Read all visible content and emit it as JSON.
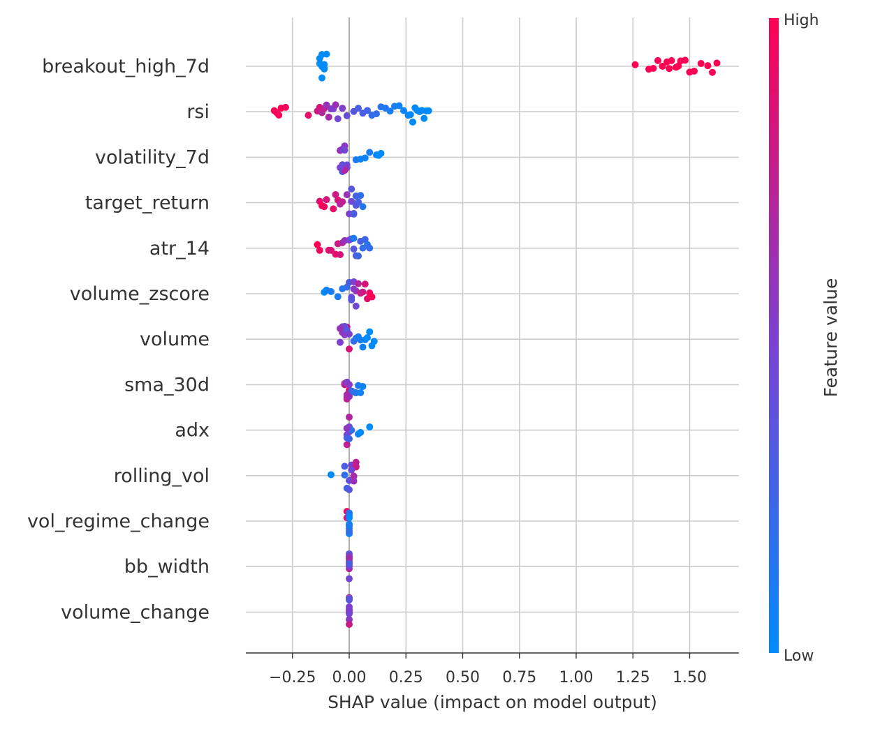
{
  "chart_data": {
    "type": "scatter",
    "title": "",
    "xlabel": "SHAP value (impact on model output)",
    "ylabel": "",
    "xlim": [
      -0.45,
      1.73
    ],
    "xticks": [
      -0.25,
      0.0,
      0.25,
      0.5,
      0.75,
      1.0,
      1.25,
      1.5
    ],
    "xtick_labels": [
      "−0.25",
      "0.00",
      "0.25",
      "0.50",
      "0.75",
      "1.00",
      "1.25",
      "1.50"
    ],
    "grid": true,
    "colorbar": {
      "title": "Feature value",
      "high_label": "High",
      "low_label": "Low",
      "high_color": "#ff0052",
      "low_color": "#008bfb"
    },
    "features": [
      {
        "name": "breakout_high_7d",
        "points": [
          [
            -0.12,
            0.0
          ],
          [
            -0.11,
            0.0
          ],
          [
            -0.12,
            0.0
          ],
          [
            -0.13,
            0.0
          ],
          [
            -0.11,
            0.0
          ],
          [
            -0.12,
            0.0
          ],
          [
            -0.1,
            0.0
          ],
          [
            -0.12,
            0.0
          ],
          [
            -0.11,
            0.0
          ],
          [
            -0.13,
            0.0
          ],
          [
            1.26,
            1.0
          ],
          [
            1.32,
            1.0
          ],
          [
            1.34,
            1.0
          ],
          [
            1.36,
            1.0
          ],
          [
            1.38,
            1.0
          ],
          [
            1.4,
            1.0
          ],
          [
            1.41,
            1.0
          ],
          [
            1.42,
            1.0
          ],
          [
            1.44,
            1.0
          ],
          [
            1.45,
            1.0
          ],
          [
            1.46,
            1.0
          ],
          [
            1.48,
            1.0
          ],
          [
            1.5,
            1.0
          ],
          [
            1.52,
            1.0
          ],
          [
            1.55,
            1.0
          ],
          [
            1.58,
            1.0
          ],
          [
            1.6,
            1.0
          ],
          [
            1.62,
            1.0
          ]
        ]
      },
      {
        "name": "rsi",
        "points": [
          [
            -0.33,
            1.0
          ],
          [
            -0.32,
            0.95
          ],
          [
            -0.31,
            0.98
          ],
          [
            -0.3,
            1.0
          ],
          [
            -0.28,
            0.95
          ],
          [
            -0.18,
            0.9
          ],
          [
            -0.14,
            0.8
          ],
          [
            -0.13,
            0.85
          ],
          [
            -0.12,
            0.7
          ],
          [
            -0.11,
            0.75
          ],
          [
            -0.1,
            0.6
          ],
          [
            -0.09,
            0.65
          ],
          [
            -0.08,
            0.55
          ],
          [
            -0.07,
            0.5
          ],
          [
            -0.06,
            0.6
          ],
          [
            -0.05,
            0.45
          ],
          [
            -0.03,
            0.5
          ],
          [
            -0.01,
            0.4
          ],
          [
            0.02,
            0.35
          ],
          [
            0.04,
            0.3
          ],
          [
            0.06,
            0.3
          ],
          [
            0.08,
            0.25
          ],
          [
            0.1,
            0.2
          ],
          [
            0.12,
            0.2
          ],
          [
            0.14,
            0.15
          ],
          [
            0.16,
            0.12
          ],
          [
            0.18,
            0.1
          ],
          [
            0.2,
            0.1
          ],
          [
            0.22,
            0.05
          ],
          [
            0.24,
            0.05
          ],
          [
            0.26,
            0.05
          ],
          [
            0.27,
            0.02
          ],
          [
            0.28,
            0.0
          ],
          [
            0.29,
            0.02
          ],
          [
            0.3,
            0.0
          ],
          [
            0.31,
            0.0
          ],
          [
            0.32,
            0.0
          ],
          [
            0.33,
            0.0
          ],
          [
            0.34,
            0.0
          ],
          [
            0.35,
            0.0
          ]
        ]
      },
      {
        "name": "volatility_7d",
        "points": [
          [
            -0.04,
            0.6
          ],
          [
            -0.03,
            0.5
          ],
          [
            -0.03,
            0.4
          ],
          [
            -0.02,
            0.55
          ],
          [
            -0.02,
            0.45
          ],
          [
            -0.01,
            0.4
          ],
          [
            -0.01,
            0.5
          ],
          [
            -0.03,
            0.35
          ],
          [
            -0.02,
            0.7
          ],
          [
            -0.04,
            0.45
          ],
          [
            0.03,
            0.1
          ],
          [
            0.05,
            0.05
          ],
          [
            0.07,
            0.05
          ],
          [
            0.09,
            0.1
          ],
          [
            0.12,
            0.05
          ],
          [
            0.13,
            0.0
          ],
          [
            0.14,
            0.0
          ]
        ]
      },
      {
        "name": "target_return",
        "points": [
          [
            -0.13,
            0.9
          ],
          [
            -0.12,
            1.0
          ],
          [
            -0.11,
            0.95
          ],
          [
            -0.1,
            0.85
          ],
          [
            -0.07,
            0.9
          ],
          [
            -0.06,
            0.8
          ],
          [
            -0.05,
            0.85
          ],
          [
            -0.04,
            0.7
          ],
          [
            -0.03,
            0.75
          ],
          [
            -0.01,
            0.6
          ],
          [
            0.0,
            0.5
          ],
          [
            0.01,
            0.45
          ],
          [
            0.02,
            0.4
          ],
          [
            0.03,
            0.35
          ],
          [
            0.04,
            0.3
          ],
          [
            0.05,
            0.2
          ],
          [
            0.06,
            0.15
          ],
          [
            0.02,
            0.3
          ],
          [
            0.03,
            0.25
          ],
          [
            0.01,
            0.35
          ]
        ]
      },
      {
        "name": "atr_14",
        "points": [
          [
            -0.14,
            1.0
          ],
          [
            -0.13,
            0.95
          ],
          [
            -0.09,
            0.9
          ],
          [
            -0.08,
            0.85
          ],
          [
            -0.06,
            0.9
          ],
          [
            -0.05,
            0.8
          ],
          [
            -0.04,
            0.85
          ],
          [
            -0.03,
            0.7
          ],
          [
            -0.02,
            0.6
          ],
          [
            0.0,
            0.5
          ],
          [
            0.01,
            0.4
          ],
          [
            0.02,
            0.35
          ],
          [
            0.03,
            0.3
          ],
          [
            0.04,
            0.25
          ],
          [
            0.05,
            0.3
          ],
          [
            0.06,
            0.2
          ],
          [
            0.07,
            0.25
          ],
          [
            0.08,
            0.15
          ],
          [
            0.09,
            0.2
          ],
          [
            0.02,
            0.1
          ]
        ]
      },
      {
        "name": "volume_zscore",
        "points": [
          [
            -0.11,
            0.0
          ],
          [
            -0.1,
            0.05
          ],
          [
            -0.08,
            0.1
          ],
          [
            -0.05,
            0.1
          ],
          [
            -0.03,
            0.15
          ],
          [
            -0.01,
            0.2
          ],
          [
            0.0,
            0.3
          ],
          [
            0.01,
            0.4
          ],
          [
            0.02,
            0.5
          ],
          [
            0.03,
            0.6
          ],
          [
            0.04,
            0.7
          ],
          [
            0.05,
            0.75
          ],
          [
            0.06,
            0.8
          ],
          [
            0.07,
            0.85
          ],
          [
            0.08,
            0.9
          ],
          [
            0.09,
            0.95
          ],
          [
            0.1,
            1.0
          ],
          [
            0.02,
            0.55
          ],
          [
            0.03,
            0.45
          ],
          [
            0.01,
            0.35
          ]
        ]
      },
      {
        "name": "volume",
        "points": [
          [
            -0.04,
            0.5
          ],
          [
            -0.03,
            0.6
          ],
          [
            -0.02,
            0.55
          ],
          [
            -0.01,
            0.8
          ],
          [
            0.0,
            0.85
          ],
          [
            -0.02,
            0.4
          ],
          [
            -0.03,
            0.45
          ],
          [
            -0.01,
            0.35
          ],
          [
            0.0,
            0.5
          ],
          [
            -0.04,
            0.6
          ],
          [
            0.02,
            0.2
          ],
          [
            0.03,
            0.15
          ],
          [
            0.04,
            0.1
          ],
          [
            0.05,
            0.1
          ],
          [
            0.06,
            0.05
          ],
          [
            0.07,
            0.05
          ],
          [
            0.08,
            0.0
          ],
          [
            0.09,
            0.0
          ],
          [
            0.1,
            0.0
          ],
          [
            0.11,
            0.0
          ]
        ]
      },
      {
        "name": "sma_30d",
        "points": [
          [
            -0.02,
            0.8
          ],
          [
            -0.01,
            0.85
          ],
          [
            0.0,
            0.9
          ],
          [
            -0.02,
            0.7
          ],
          [
            -0.01,
            0.75
          ],
          [
            0.0,
            0.6
          ],
          [
            -0.01,
            0.5
          ],
          [
            0.0,
            0.55
          ],
          [
            0.01,
            0.3
          ],
          [
            0.02,
            0.2
          ],
          [
            0.03,
            0.15
          ],
          [
            0.04,
            0.1
          ],
          [
            0.05,
            0.05
          ],
          [
            0.06,
            0.05
          ],
          [
            -0.01,
            0.65
          ]
        ]
      },
      {
        "name": "adx",
        "points": [
          [
            -0.01,
            0.8
          ],
          [
            0.0,
            0.7
          ],
          [
            -0.01,
            0.75
          ],
          [
            0.0,
            0.6
          ],
          [
            -0.01,
            0.5
          ],
          [
            0.0,
            0.45
          ],
          [
            -0.01,
            0.3
          ],
          [
            0.0,
            0.25
          ],
          [
            0.01,
            0.2
          ],
          [
            -0.01,
            0.55
          ],
          [
            0.04,
            0.05
          ],
          [
            0.05,
            0.0
          ],
          [
            0.09,
            0.0
          ]
        ]
      },
      {
        "name": "rolling_vol",
        "points": [
          [
            -0.08,
            0.0
          ],
          [
            -0.02,
            0.2
          ],
          [
            -0.01,
            0.25
          ],
          [
            0.0,
            0.4
          ],
          [
            0.01,
            0.5
          ],
          [
            0.02,
            0.6
          ],
          [
            0.03,
            0.7
          ],
          [
            0.03,
            0.8
          ],
          [
            0.02,
            0.55
          ],
          [
            0.01,
            0.45
          ],
          [
            -0.02,
            0.3
          ],
          [
            0.0,
            0.35
          ],
          [
            0.02,
            0.65
          ],
          [
            0.03,
            0.75
          ]
        ]
      },
      {
        "name": "vol_regime_change",
        "points": [
          [
            -0.01,
            0.9
          ],
          [
            -0.01,
            0.95
          ],
          [
            0.0,
            0.2
          ],
          [
            0.0,
            0.15
          ],
          [
            0.0,
            0.1
          ],
          [
            0.0,
            0.1
          ],
          [
            0.0,
            0.05
          ],
          [
            0.0,
            0.1
          ],
          [
            0.0,
            0.0
          ],
          [
            0.0,
            0.2
          ]
        ]
      },
      {
        "name": "bb_width",
        "points": [
          [
            0.0,
            0.4
          ],
          [
            0.0,
            0.5
          ],
          [
            0.0,
            0.6
          ],
          [
            0.0,
            0.45
          ],
          [
            0.0,
            0.7
          ],
          [
            0.0,
            0.35
          ],
          [
            0.0,
            0.55
          ],
          [
            0.0,
            0.5
          ],
          [
            0.0,
            0.65
          ],
          [
            0.0,
            0.3
          ]
        ]
      },
      {
        "name": "volume_change",
        "points": [
          [
            0.0,
            0.6
          ],
          [
            0.0,
            0.5
          ],
          [
            0.0,
            0.7
          ],
          [
            0.0,
            0.4
          ],
          [
            0.0,
            0.55
          ],
          [
            0.0,
            0.65
          ],
          [
            0.0,
            0.45
          ],
          [
            0.0,
            0.8
          ],
          [
            0.0,
            0.35
          ],
          [
            0.0,
            0.5
          ]
        ]
      }
    ]
  }
}
